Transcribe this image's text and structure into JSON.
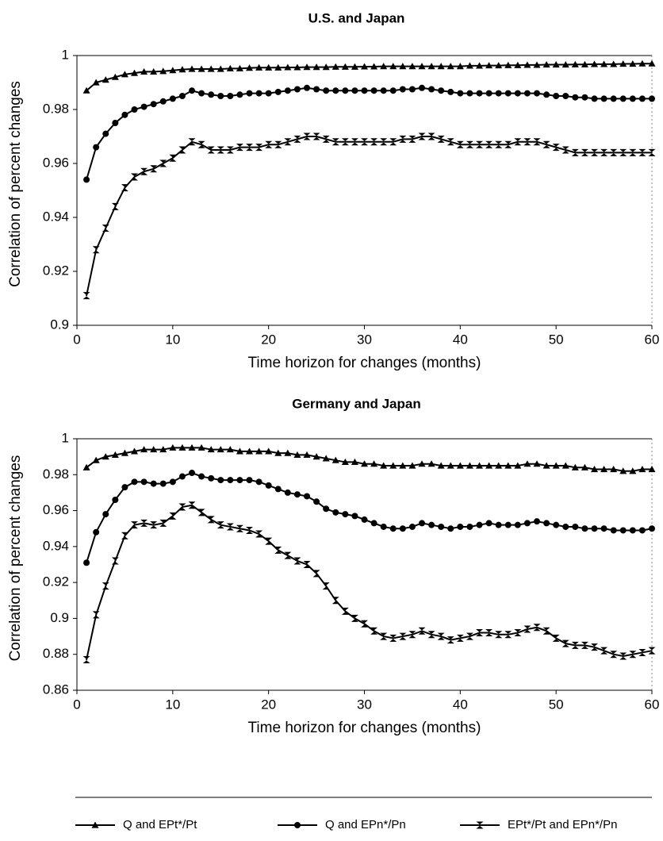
{
  "chart_data": [
    {
      "type": "line",
      "title": "U.S. and Japan",
      "x_label": "Time horizon for changes (months)",
      "y_label": "Correlation of percent changes",
      "xlim": [
        0,
        60
      ],
      "xticks": [
        0,
        10,
        20,
        30,
        40,
        50,
        60
      ],
      "ylim": [
        0.9,
        1
      ],
      "yticks": [
        0.9,
        0.92,
        0.94,
        0.96,
        0.98,
        1
      ],
      "x": [
        1,
        2,
        3,
        4,
        5,
        6,
        7,
        8,
        9,
        10,
        11,
        12,
        13,
        14,
        15,
        16,
        17,
        18,
        19,
        20,
        21,
        22,
        23,
        24,
        25,
        26,
        27,
        28,
        29,
        30,
        31,
        32,
        33,
        34,
        35,
        36,
        37,
        38,
        39,
        40,
        41,
        42,
        43,
        44,
        45,
        46,
        47,
        48,
        49,
        50,
        51,
        52,
        53,
        54,
        55,
        56,
        57,
        58,
        59,
        60
      ],
      "series": [
        {
          "name": "Q and EPt*/Pt",
          "color": "#000000",
          "marker": "triangle",
          "values": [
            0.987,
            0.99,
            0.991,
            0.992,
            0.993,
            0.9935,
            0.994,
            0.994,
            0.9942,
            0.9945,
            0.9948,
            0.995,
            0.995,
            0.995,
            0.995,
            0.9952,
            0.9952,
            0.9954,
            0.9955,
            0.9955,
            0.9955,
            0.9956,
            0.9956,
            0.9957,
            0.9957,
            0.9957,
            0.9958,
            0.9958,
            0.9958,
            0.9959,
            0.9959,
            0.996,
            0.996,
            0.996,
            0.996,
            0.996,
            0.996,
            0.996,
            0.996,
            0.996,
            0.9962,
            0.9962,
            0.9963,
            0.9963,
            0.9964,
            0.9964,
            0.9965,
            0.9965,
            0.9966,
            0.9966,
            0.9966,
            0.9967,
            0.9967,
            0.9968,
            0.9968,
            0.9968,
            0.9969,
            0.9969,
            0.997,
            0.997
          ]
        },
        {
          "name": "Q and EPn*/Pn",
          "color": "#000000",
          "marker": "circle",
          "values": [
            0.954,
            0.966,
            0.971,
            0.975,
            0.978,
            0.98,
            0.981,
            0.982,
            0.983,
            0.984,
            0.985,
            0.987,
            0.986,
            0.9855,
            0.985,
            0.985,
            0.9855,
            0.986,
            0.986,
            0.986,
            0.9865,
            0.987,
            0.9875,
            0.988,
            0.9875,
            0.987,
            0.987,
            0.987,
            0.987,
            0.987,
            0.987,
            0.987,
            0.987,
            0.9875,
            0.9875,
            0.988,
            0.9875,
            0.987,
            0.9865,
            0.986,
            0.986,
            0.986,
            0.986,
            0.986,
            0.986,
            0.986,
            0.986,
            0.986,
            0.9855,
            0.985,
            0.985,
            0.9845,
            0.9845,
            0.984,
            0.984,
            0.984,
            0.984,
            0.984,
            0.984,
            0.984
          ]
        },
        {
          "name": "EPt*/Pt and EPn*/Pn",
          "color": "#000000",
          "marker": "hourglass",
          "values": [
            0.911,
            0.928,
            0.936,
            0.944,
            0.951,
            0.955,
            0.957,
            0.958,
            0.96,
            0.962,
            0.965,
            0.968,
            0.967,
            0.965,
            0.965,
            0.965,
            0.966,
            0.966,
            0.966,
            0.967,
            0.967,
            0.968,
            0.969,
            0.97,
            0.97,
            0.969,
            0.968,
            0.968,
            0.968,
            0.968,
            0.968,
            0.968,
            0.968,
            0.969,
            0.969,
            0.97,
            0.97,
            0.969,
            0.968,
            0.967,
            0.967,
            0.967,
            0.967,
            0.967,
            0.967,
            0.968,
            0.968,
            0.968,
            0.967,
            0.966,
            0.965,
            0.964,
            0.964,
            0.964,
            0.964,
            0.964,
            0.964,
            0.964,
            0.964,
            0.964
          ]
        }
      ]
    },
    {
      "type": "line",
      "title": "Germany and Japan",
      "x_label": "Time horizon for changes (months)",
      "y_label": "Correlation of percent changes",
      "xlim": [
        0,
        60
      ],
      "xticks": [
        0,
        10,
        20,
        30,
        40,
        50,
        60
      ],
      "ylim": [
        0.86,
        1
      ],
      "yticks": [
        0.86,
        0.88,
        0.9,
        0.92,
        0.94,
        0.96,
        0.98,
        1
      ],
      "x": [
        1,
        2,
        3,
        4,
        5,
        6,
        7,
        8,
        9,
        10,
        11,
        12,
        13,
        14,
        15,
        16,
        17,
        18,
        19,
        20,
        21,
        22,
        23,
        24,
        25,
        26,
        27,
        28,
        29,
        30,
        31,
        32,
        33,
        34,
        35,
        36,
        37,
        38,
        39,
        40,
        41,
        42,
        43,
        44,
        45,
        46,
        47,
        48,
        49,
        50,
        51,
        52,
        53,
        54,
        55,
        56,
        57,
        58,
        59,
        60
      ],
      "series": [
        {
          "color": "#000000",
          "marker": "triangle",
          "values": [
            0.984,
            0.988,
            0.99,
            0.991,
            0.992,
            0.993,
            0.994,
            0.994,
            0.994,
            0.995,
            0.995,
            0.995,
            0.995,
            0.994,
            0.994,
            0.994,
            0.993,
            0.993,
            0.993,
            0.993,
            0.992,
            0.992,
            0.991,
            0.991,
            0.99,
            0.989,
            0.988,
            0.987,
            0.987,
            0.986,
            0.986,
            0.985,
            0.985,
            0.985,
            0.985,
            0.986,
            0.986,
            0.985,
            0.985,
            0.985,
            0.985,
            0.985,
            0.985,
            0.985,
            0.985,
            0.985,
            0.986,
            0.986,
            0.985,
            0.985,
            0.985,
            0.984,
            0.984,
            0.983,
            0.983,
            0.983,
            0.982,
            0.982,
            0.983,
            0.983
          ]
        },
        {
          "color": "#000000",
          "marker": "circle",
          "values": [
            0.931,
            0.948,
            0.958,
            0.966,
            0.973,
            0.976,
            0.976,
            0.975,
            0.975,
            0.976,
            0.979,
            0.981,
            0.979,
            0.978,
            0.977,
            0.977,
            0.977,
            0.977,
            0.976,
            0.974,
            0.972,
            0.97,
            0.969,
            0.968,
            0.965,
            0.961,
            0.959,
            0.958,
            0.957,
            0.955,
            0.953,
            0.951,
            0.95,
            0.95,
            0.951,
            0.953,
            0.952,
            0.951,
            0.95,
            0.951,
            0.951,
            0.952,
            0.953,
            0.952,
            0.952,
            0.952,
            0.953,
            0.954,
            0.953,
            0.952,
            0.951,
            0.951,
            0.95,
            0.95,
            0.95,
            0.949,
            0.949,
            0.949,
            0.949,
            0.95
          ]
        },
        {
          "color": "#000000",
          "marker": "hourglass",
          "values": [
            0.877,
            0.902,
            0.918,
            0.932,
            0.946,
            0.952,
            0.953,
            0.952,
            0.953,
            0.957,
            0.962,
            0.963,
            0.959,
            0.955,
            0.952,
            0.951,
            0.95,
            0.949,
            0.947,
            0.943,
            0.938,
            0.935,
            0.932,
            0.93,
            0.925,
            0.918,
            0.91,
            0.904,
            0.9,
            0.897,
            0.893,
            0.89,
            0.889,
            0.89,
            0.891,
            0.893,
            0.891,
            0.89,
            0.888,
            0.889,
            0.89,
            0.892,
            0.892,
            0.891,
            0.891,
            0.892,
            0.894,
            0.895,
            0.893,
            0.889,
            0.886,
            0.885,
            0.885,
            0.884,
            0.882,
            0.88,
            0.879,
            0.88,
            0.881,
            0.882
          ]
        }
      ]
    }
  ]
}
